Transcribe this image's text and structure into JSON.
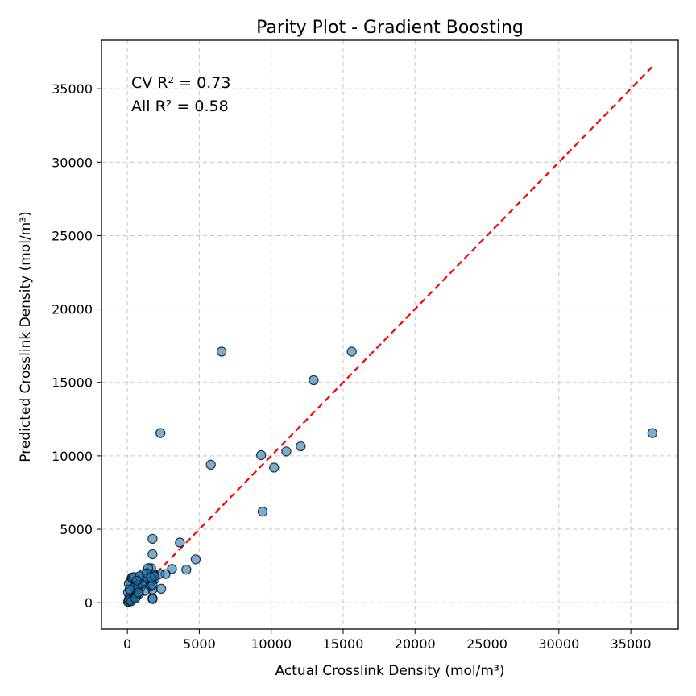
{
  "chart_data": {
    "type": "scatter",
    "title": "Parity Plot - Gradient Boosting",
    "xlabel": "Actual Crosslink Density (mol/m³)",
    "ylabel": "Predicted Crosslink Density (mol/m³)",
    "xlim": [
      -1800,
      38300
    ],
    "ylim": [
      -1800,
      38300
    ],
    "xticks": [
      0,
      5000,
      10000,
      15000,
      20000,
      25000,
      30000,
      35000
    ],
    "yticks": [
      0,
      5000,
      10000,
      15000,
      20000,
      25000,
      30000,
      35000
    ],
    "grid": true,
    "annotations": [
      "CV R² = 0.73",
      "All R² = 0.58"
    ],
    "marker_color": "#1f77b4",
    "parity_line": {
      "from": [
        0,
        0
      ],
      "to": [
        36500,
        36500
      ],
      "color": "#ff0000",
      "style": "dashed"
    },
    "points": [
      [
        36500,
        11550
      ],
      [
        15600,
        17100
      ],
      [
        6550,
        17100
      ],
      [
        12950,
        15150
      ],
      [
        2300,
        11550
      ],
      [
        12050,
        10650
      ],
      [
        11050,
        10300
      ],
      [
        9300,
        10050
      ],
      [
        10200,
        9200
      ],
      [
        5800,
        9400
      ],
      [
        9400,
        6200
      ],
      [
        1750,
        4350
      ],
      [
        3650,
        4100
      ],
      [
        1750,
        3300
      ],
      [
        4750,
        2950
      ],
      [
        4100,
        2250
      ],
      [
        3100,
        2300
      ],
      [
        2650,
        1950
      ],
      [
        2250,
        1950
      ],
      [
        1650,
        2350
      ],
      [
        1450,
        2350
      ],
      [
        2350,
        950
      ],
      [
        1750,
        300
      ],
      [
        1750,
        250
      ],
      [
        1750,
        900
      ],
      [
        1700,
        1500
      ],
      [
        1900,
        1600
      ],
      [
        1850,
        1900
      ],
      [
        1550,
        1800
      ],
      [
        1300,
        1700
      ],
      [
        1100,
        1950
      ],
      [
        1150,
        1500
      ],
      [
        1000,
        1650
      ],
      [
        900,
        1000
      ],
      [
        750,
        1200
      ],
      [
        600,
        800
      ],
      [
        500,
        600
      ],
      [
        400,
        500
      ],
      [
        300,
        300
      ],
      [
        200,
        200
      ],
      [
        100,
        100
      ],
      [
        50,
        50
      ],
      [
        150,
        400
      ],
      [
        250,
        800
      ],
      [
        200,
        1400
      ],
      [
        300,
        1700
      ],
      [
        100,
        1300
      ],
      [
        50,
        700
      ],
      [
        350,
        1650
      ],
      [
        450,
        1750
      ],
      [
        700,
        1100
      ],
      [
        850,
        1800
      ],
      [
        1050,
        1250
      ],
      [
        1400,
        1650
      ],
      [
        1600,
        1100
      ],
      [
        1200,
        800
      ],
      [
        1750,
        1200
      ],
      [
        1900,
        1800
      ],
      [
        600,
        400
      ],
      [
        800,
        600
      ],
      [
        500,
        1050
      ],
      [
        150,
        900
      ],
      [
        1350,
        2000
      ],
      [
        1650,
        1700
      ],
      [
        350,
        200
      ],
      [
        650,
        1500
      ],
      [
        100,
        200
      ],
      [
        250,
        100
      ],
      [
        550,
        300
      ],
      [
        750,
        700
      ]
    ]
  }
}
